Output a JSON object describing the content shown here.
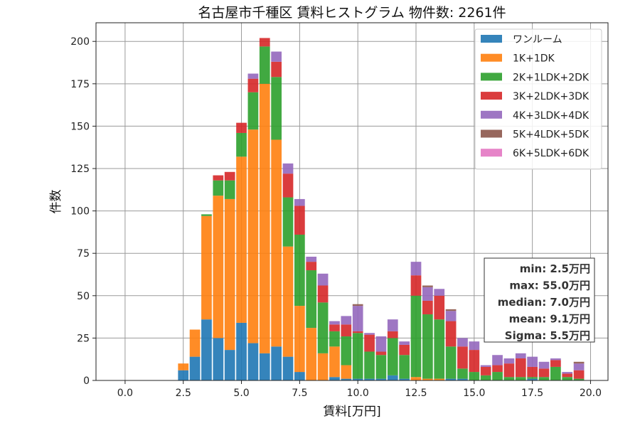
{
  "chart_data": {
    "type": "bar",
    "stacked": true,
    "title": "名古屋市千種区 賃料ヒストグラム 物件数: 2261件",
    "xlabel": "賃料[万円]",
    "ylabel": "件数",
    "xlim": [
      -1.25,
      20.75
    ],
    "ylim": [
      0,
      211
    ],
    "xticks": [
      0.0,
      2.5,
      5.0,
      7.5,
      10.0,
      12.5,
      15.0,
      17.5,
      20.0
    ],
    "xtick_labels": [
      "0.0",
      "2.5",
      "5.0",
      "7.5",
      "10.0",
      "12.5",
      "15.0",
      "17.5",
      "20.0"
    ],
    "yticks": [
      0,
      25,
      50,
      75,
      100,
      125,
      150,
      175,
      200
    ],
    "ytick_labels": [
      "0",
      "25",
      "50",
      "75",
      "100",
      "125",
      "150",
      "175",
      "200"
    ],
    "grid": true,
    "legend_position": "top-right",
    "bin_width": 0.5,
    "x": [
      2.5,
      3.0,
      3.5,
      4.0,
      4.5,
      5.0,
      5.5,
      6.0,
      6.5,
      7.0,
      7.5,
      8.0,
      8.5,
      9.0,
      9.5,
      10.0,
      10.5,
      11.0,
      11.5,
      12.0,
      12.5,
      13.0,
      13.5,
      14.0,
      14.5,
      15.0,
      15.5,
      16.0,
      16.5,
      17.0,
      17.5,
      18.0,
      18.5,
      19.0,
      19.5
    ],
    "series": [
      {
        "name": "ワンルーム",
        "color": "#1f77b4",
        "values": [
          6,
          14,
          36,
          25,
          18,
          34,
          22,
          16,
          20,
          14,
          5,
          0,
          0,
          2,
          1,
          1,
          1,
          1,
          3,
          1,
          0,
          0,
          0,
          1,
          1,
          0,
          0,
          0,
          0,
          0,
          1,
          0,
          0,
          0,
          0
        ]
      },
      {
        "name": "1K+1DK",
        "color": "#ff7f0e",
        "values": [
          4,
          16,
          61,
          84,
          89,
          98,
          126,
          159,
          122,
          65,
          39,
          31,
          16,
          18,
          8,
          0,
          0,
          0,
          0,
          0,
          2,
          1,
          1,
          0,
          0,
          0,
          0,
          0,
          0,
          0,
          0,
          0,
          0,
          0,
          0
        ]
      },
      {
        "name": "2K+1LDK+2DK",
        "color": "#2ca02c",
        "values": [
          0,
          0,
          1,
          9,
          11,
          14,
          22,
          22,
          37,
          29,
          42,
          34,
          30,
          9,
          17,
          27,
          16,
          14,
          22,
          14,
          48,
          38,
          35,
          19,
          6,
          5,
          3,
          5,
          2,
          2,
          1,
          2,
          8,
          2,
          1
        ]
      },
      {
        "name": "3K+2LDK+3DK",
        "color": "#d62728",
        "values": [
          0,
          0,
          0,
          3,
          5,
          6,
          8,
          5,
          9,
          14,
          17,
          5,
          10,
          4,
          7,
          1,
          10,
          2,
          4,
          6,
          12,
          8,
          14,
          15,
          13,
          13,
          5,
          4,
          8,
          11,
          6,
          5,
          4,
          2,
          5
        ]
      },
      {
        "name": "4K+3LDK+4DK",
        "color": "#9467bd",
        "values": [
          0,
          0,
          0,
          0,
          0,
          0,
          3,
          0,
          6,
          6,
          4,
          3,
          7,
          2,
          5,
          15,
          1,
          9,
          7,
          2,
          8,
          8,
          4,
          6,
          5,
          5,
          1,
          6,
          3,
          3,
          6,
          4,
          1,
          1,
          4
        ]
      },
      {
        "name": "5K+4LDK+5DK",
        "color": "#8c564b",
        "values": [
          0,
          0,
          0,
          0,
          0,
          0,
          0,
          0,
          0,
          0,
          0,
          0,
          0,
          0,
          0,
          1,
          0,
          0,
          0,
          0,
          0,
          1,
          0,
          1,
          0,
          0,
          0,
          0,
          0,
          0,
          0,
          0,
          0,
          0,
          1
        ]
      },
      {
        "name": "6K+5LDK+6DK",
        "color": "#e377c2",
        "values": [
          0,
          0,
          0,
          0,
          0,
          0,
          0,
          0,
          0,
          0,
          0,
          0,
          0,
          0,
          0,
          0,
          0,
          0,
          0,
          0,
          0,
          0,
          0,
          0,
          0,
          0,
          0,
          0,
          0,
          0,
          0,
          0,
          0,
          0,
          0
        ]
      }
    ],
    "stats": {
      "min": "min: 2.5万円",
      "max": "max: 55.0万円",
      "median": "median: 7.0万円",
      "mean": "mean: 9.1万円",
      "sigma": "Sigma: 5.5万円"
    }
  }
}
